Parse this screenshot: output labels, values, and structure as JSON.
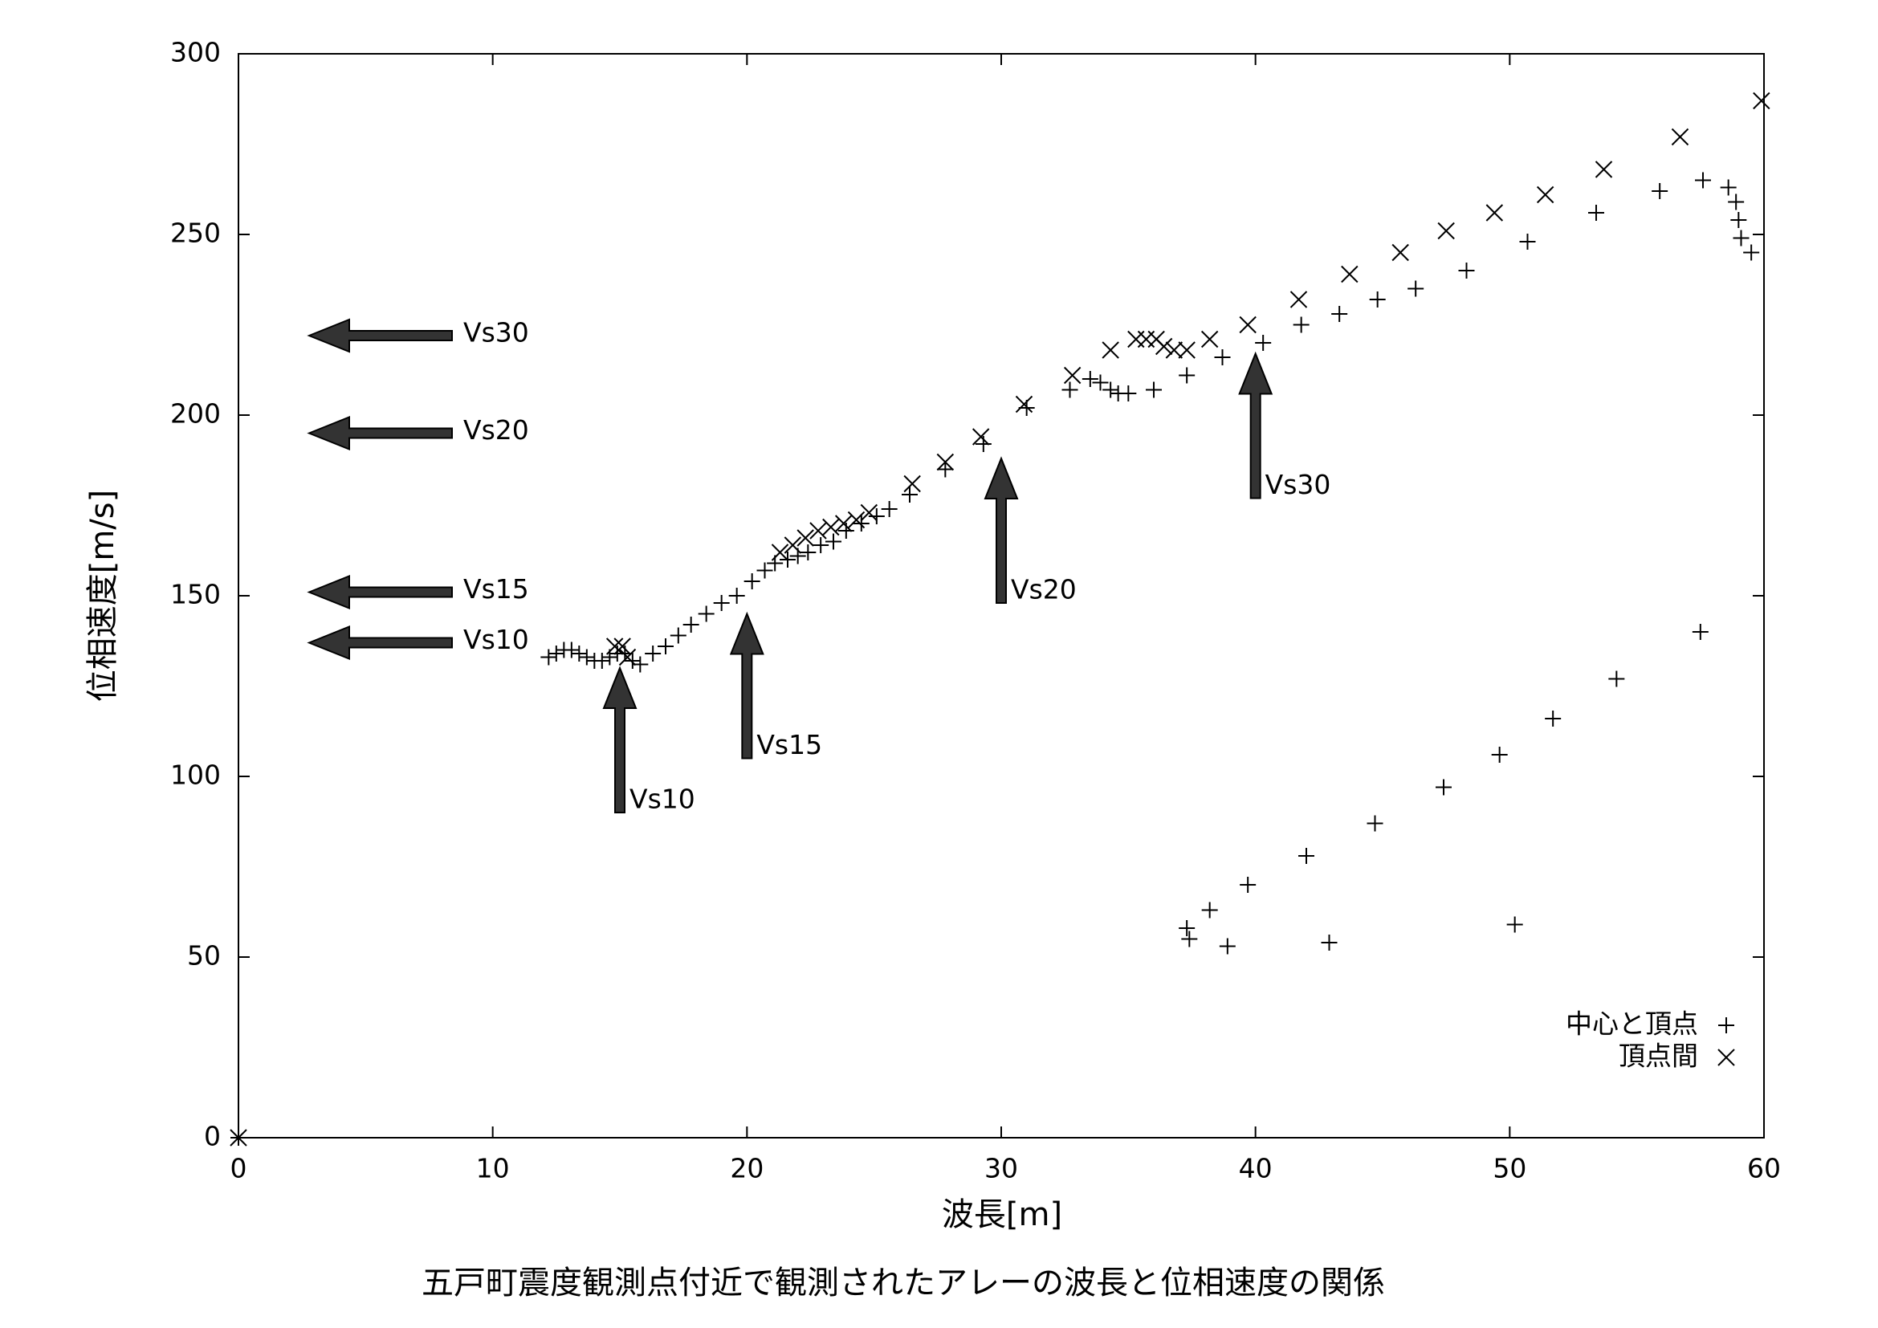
{
  "chart_data": {
    "type": "scatter",
    "title": "五戸町震度観測点付近で観測されたアレーの波長と位相速度の関係",
    "x_label": "波長[m]",
    "y_label": "位相速度[m/s]",
    "xlim": [
      0,
      60
    ],
    "ylim": [
      0,
      300
    ],
    "xticks": [
      0,
      10,
      20,
      30,
      40,
      50,
      60
    ],
    "yticks": [
      0,
      50,
      100,
      150,
      200,
      250,
      300
    ],
    "legend": "lower right",
    "series": [
      {
        "name": "中心と頂点",
        "marker": "+",
        "color": "#000000",
        "x": [
          0,
          12.2,
          12.5,
          12.8,
          13.1,
          13.4,
          13.7,
          14.0,
          14.3,
          14.6,
          14.9,
          15.2,
          15.5,
          15.8,
          16.3,
          16.8,
          17.3,
          17.8,
          18.4,
          19.0,
          19.6,
          20.2,
          20.7,
          21.1,
          21.6,
          22.0,
          22.4,
          22.9,
          23.4,
          23.9,
          24.5,
          25.1,
          25.6,
          26.4,
          27.8,
          29.3,
          31.0,
          32.7,
          33.5,
          33.9,
          34.3,
          34.6,
          35.0,
          36.0,
          37.3,
          38.7,
          40.3,
          41.8,
          43.3,
          44.8,
          46.3,
          48.3,
          50.7,
          53.4,
          55.9,
          57.6,
          58.6,
          58.9,
          59.0,
          59.1,
          59.5,
          37.3,
          37.4,
          38.2,
          38.9,
          39.7,
          42.0,
          42.9,
          44.7,
          47.4,
          49.6,
          50.2,
          51.7,
          54.2,
          57.5
        ],
        "values": [
          0,
          133,
          134,
          135,
          135,
          134,
          133,
          132,
          132,
          133,
          134,
          134,
          132,
          131,
          134,
          136,
          139,
          142,
          145,
          148,
          150,
          154,
          157,
          159,
          160,
          161,
          162,
          164,
          165,
          168,
          170,
          172,
          174,
          178,
          185,
          192,
          202,
          207,
          210,
          209,
          207,
          206,
          206,
          207,
          211,
          216,
          220,
          225,
          228,
          232,
          235,
          240,
          248,
          256,
          262,
          265,
          263,
          259,
          254,
          249,
          245,
          58,
          55,
          63,
          53,
          70,
          78,
          54,
          87,
          97,
          106,
          59,
          116,
          127,
          140
        ]
      },
      {
        "name": "頂点間",
        "marker": "x",
        "color": "#000000",
        "x": [
          0,
          14.8,
          15.1,
          15.3,
          21.3,
          21.8,
          22.3,
          22.8,
          23.3,
          23.8,
          24.3,
          24.8,
          26.5,
          27.8,
          29.2,
          30.9,
          32.8,
          34.3,
          35.3,
          35.7,
          36.1,
          36.4,
          36.8,
          37.3,
          38.2,
          39.7,
          41.7,
          43.7,
          45.7,
          47.5,
          49.4,
          51.4,
          53.7,
          56.7,
          59.9
        ],
        "values": [
          0,
          136,
          136,
          133,
          162,
          164,
          166,
          168,
          169,
          170,
          171,
          173,
          181,
          187,
          194,
          203,
          211,
          218,
          221,
          221,
          221,
          219,
          218,
          218,
          221,
          225,
          232,
          239,
          245,
          251,
          256,
          261,
          268,
          277,
          287
        ]
      }
    ],
    "annotations": {
      "horizontal_arrows": [
        {
          "label": "Vs30",
          "y": 222
        },
        {
          "label": "Vs20",
          "y": 195
        },
        {
          "label": "Vs15",
          "y": 151
        },
        {
          "label": "Vs10",
          "y": 137
        }
      ],
      "vertical_arrows": [
        {
          "label": "Vs10",
          "x": 15,
          "y": 130
        },
        {
          "label": "Vs15",
          "x": 20,
          "y": 145
        },
        {
          "label": "Vs20",
          "x": 30,
          "y": 188
        },
        {
          "label": "Vs30",
          "x": 40,
          "y": 217
        }
      ]
    }
  }
}
